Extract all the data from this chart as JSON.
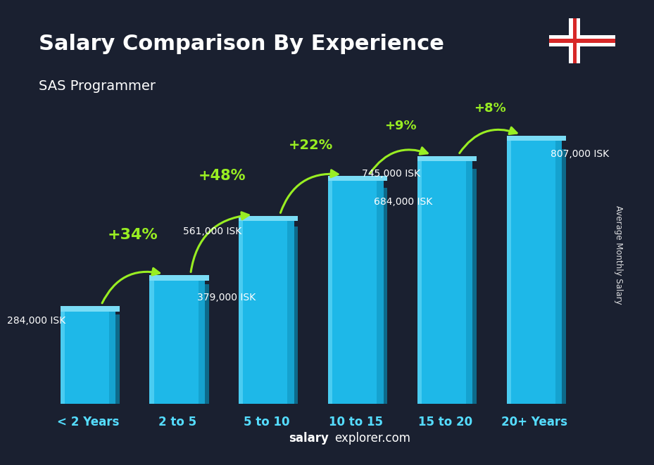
{
  "title": "Salary Comparison By Experience",
  "subtitle": "SAS Programmer",
  "categories": [
    "< 2 Years",
    "2 to 5",
    "5 to 10",
    "10 to 15",
    "15 to 20",
    "20+ Years"
  ],
  "cat_parts": [
    [
      "< 2 ",
      "Years"
    ],
    [
      "2 ",
      "to ",
      "5"
    ],
    [
      "5 ",
      "to ",
      "10"
    ],
    [
      "10 ",
      "to ",
      "15"
    ],
    [
      "15 ",
      "to ",
      "20"
    ],
    [
      "20+ ",
      "Years"
    ]
  ],
  "values": [
    284000,
    379000,
    561000,
    684000,
    745000,
    807000
  ],
  "value_labels": [
    "284,000 ISK",
    "379,000 ISK",
    "561,000 ISK",
    "684,000 ISK",
    "745,000 ISK",
    "807,000 ISK"
  ],
  "pct_changes": [
    "+34%",
    "+48%",
    "+22%",
    "+9%",
    "+8%"
  ],
  "bar_face_color": "#1eb8e8",
  "bar_side_color": "#0d6a8a",
  "bar_top_color": "#7adcf5",
  "bg_color": "#1a2030",
  "title_color": "#ffffff",
  "subtitle_color": "#ffffff",
  "label_color": "#ffffff",
  "pct_color": "#99ee22",
  "cat_color": "#55ddff",
  "footer_bold": "salary",
  "footer_normal": "explorer.com",
  "ylabel": "Average Monthly Salary",
  "ylim_max": 900000,
  "flag_blue": "#003897",
  "flag_red": "#D72828",
  "flag_white": "#ffffff"
}
